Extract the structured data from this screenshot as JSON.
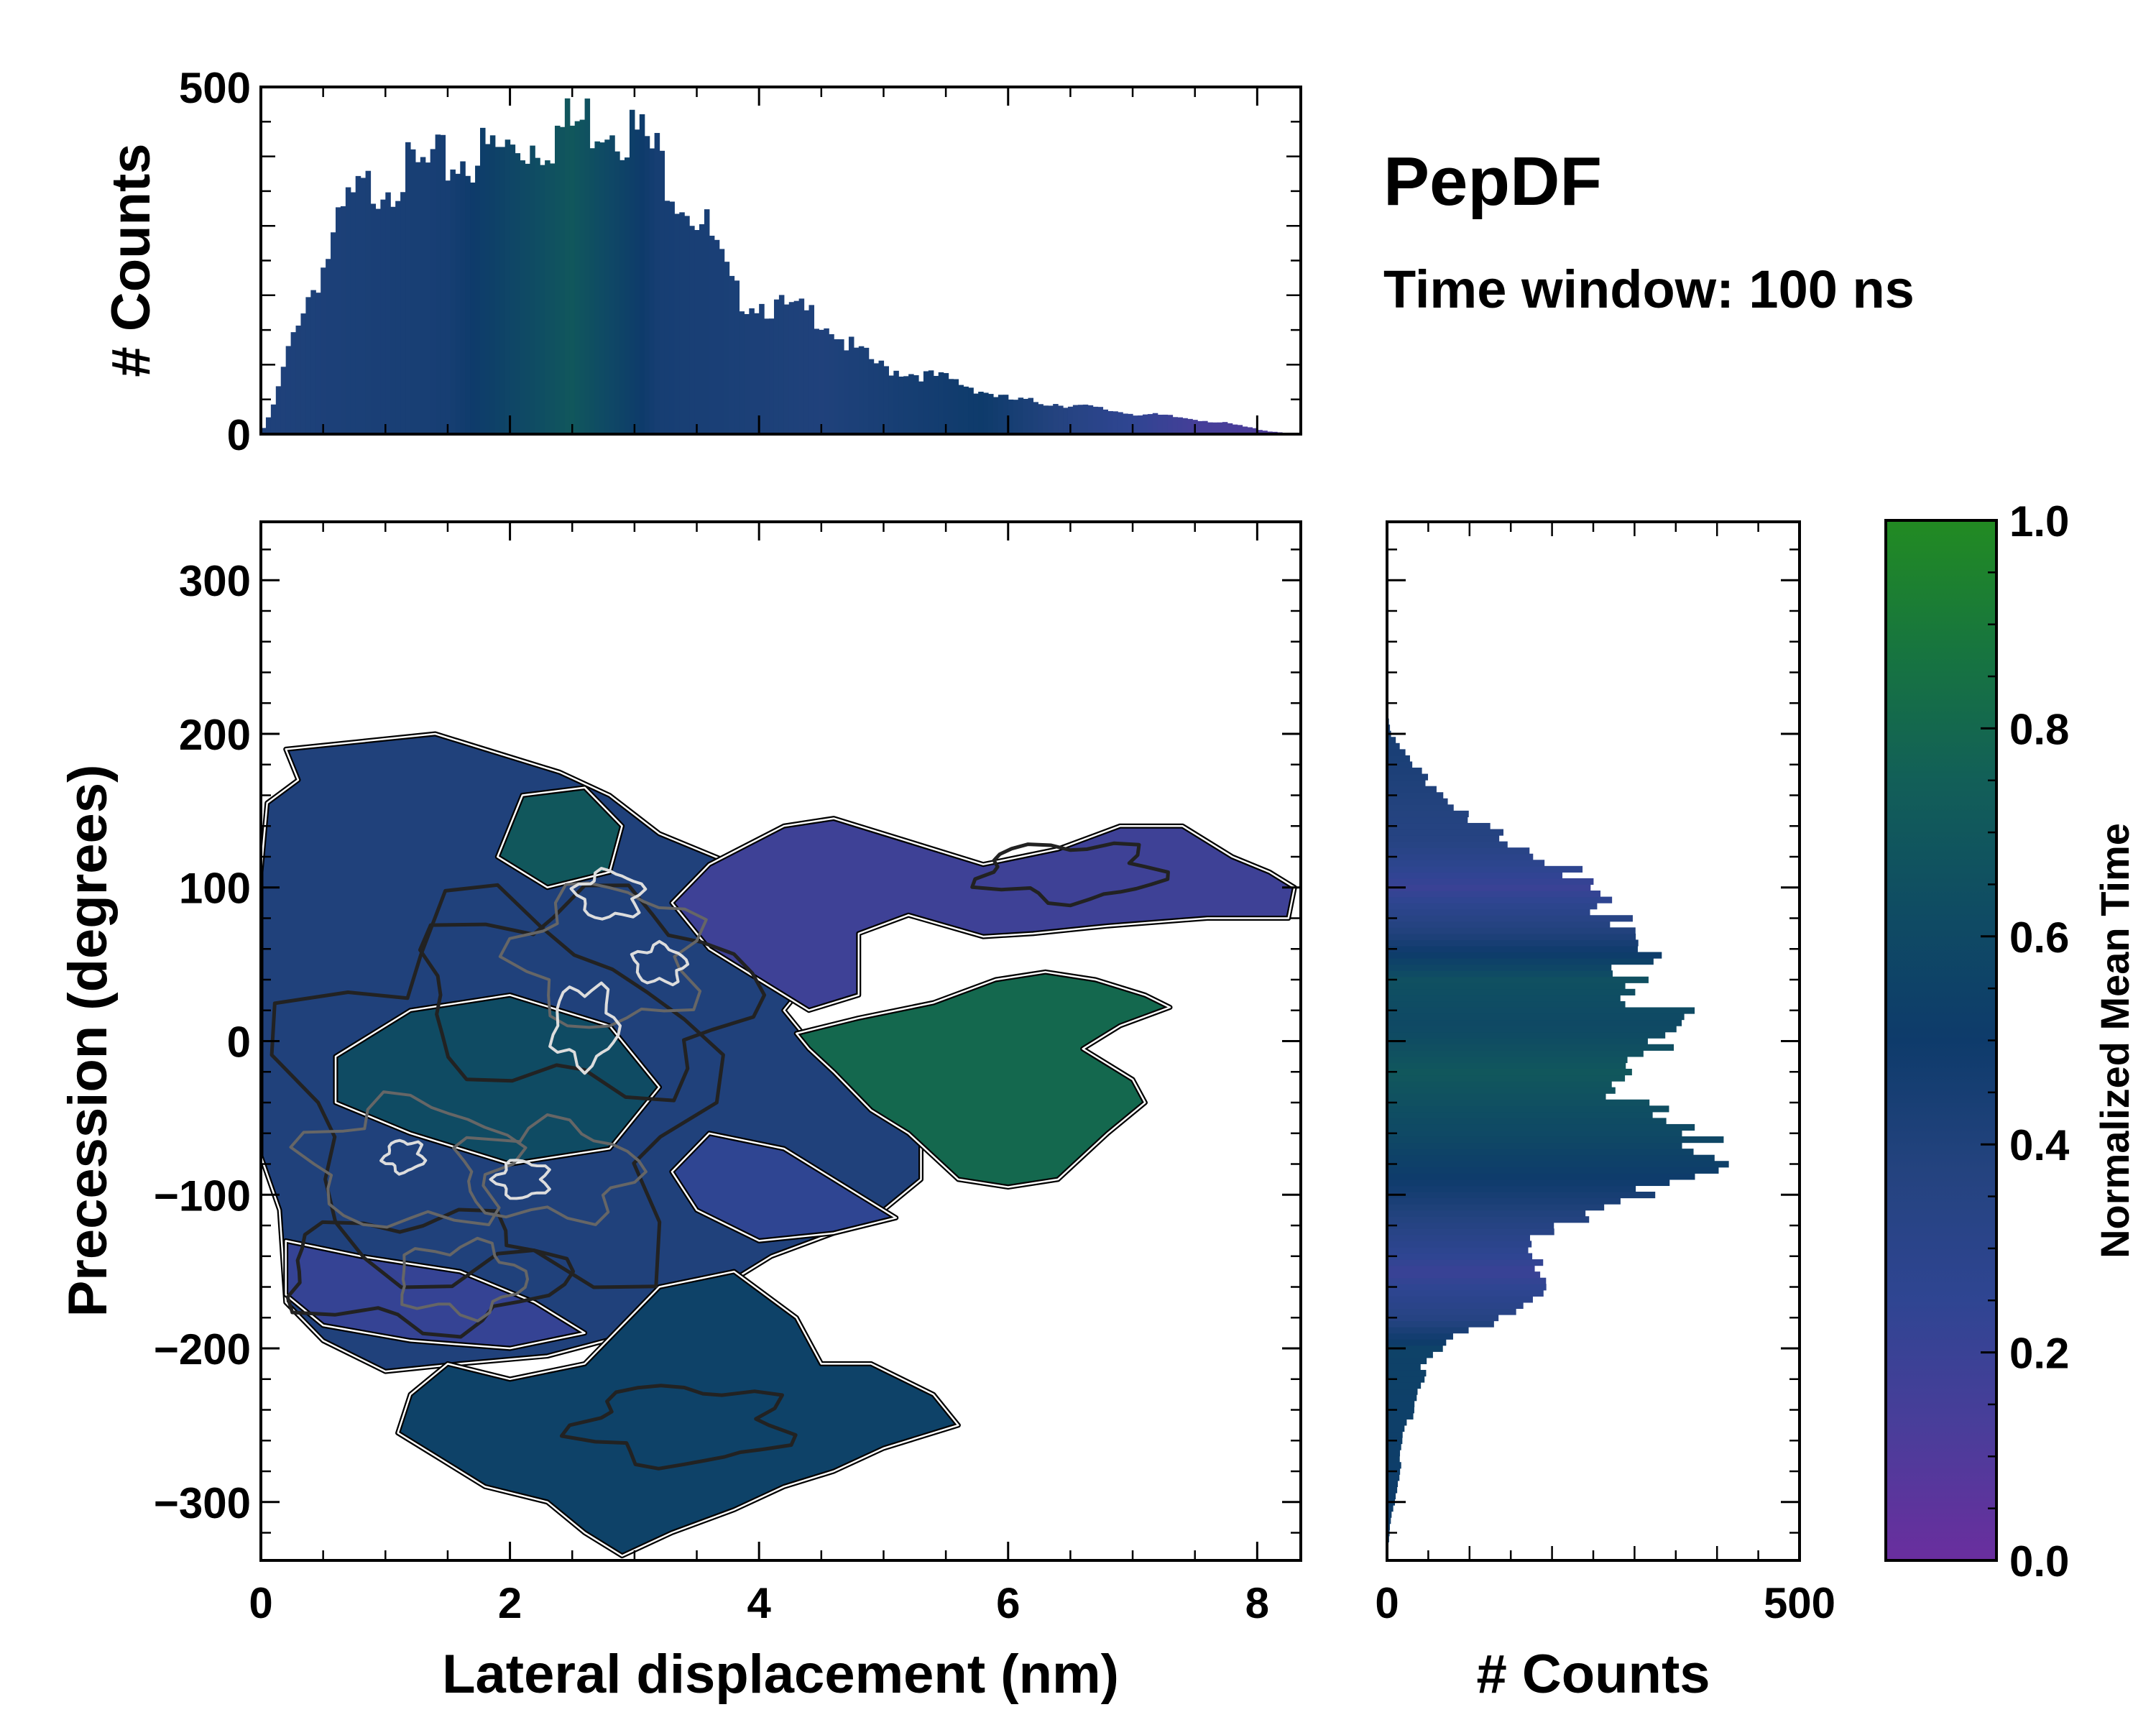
{
  "figure": {
    "title": "PepDF",
    "subtitle": "Time window: 100 ns"
  },
  "colors": {
    "colormap": [
      "#6a2e9e",
      "#4a3d9a",
      "#2f4592",
      "#24437f",
      "#0e3b6b",
      "#0f4c63",
      "#125f58",
      "#17753f",
      "#228b22"
    ],
    "outline": "#000000",
    "contour_dark": "#222222",
    "contour_mid": "#666666",
    "contour_light": "#dddddd"
  },
  "chart_data": [
    {
      "id": "main",
      "type": "heatmap",
      "xlabel": "Lateral displacement (nm)",
      "ylabel": "Precession (degrees)",
      "xlim": [
        0,
        8.35
      ],
      "ylim": [
        -338,
        338
      ],
      "xticks": [
        0,
        2,
        4,
        6,
        8
      ],
      "xtick_labels": [
        "0",
        "2",
        "4",
        "6",
        "8"
      ],
      "yticks": [
        -300,
        -200,
        -100,
        0,
        100,
        200,
        300
      ],
      "ytick_labels": [
        "−300",
        "−200",
        "−100",
        "0",
        "100",
        "200",
        "300"
      ],
      "regions": [
        {
          "name": "core-left",
          "color_value": 0.4,
          "points": [
            [
              0,
              -75
            ],
            [
              0.15,
              -110
            ],
            [
              0.2,
              -170
            ],
            [
              0.5,
              -195
            ],
            [
              1.0,
              -215
            ],
            [
              1.6,
              -210
            ],
            [
              2.3,
              -205
            ],
            [
              3.0,
              -190
            ],
            [
              3.6,
              -165
            ],
            [
              4.1,
              -140
            ],
            [
              4.6,
              -125
            ],
            [
              5.0,
              -110
            ],
            [
              5.3,
              -90
            ],
            [
              5.3,
              -60
            ],
            [
              4.9,
              -35
            ],
            [
              4.5,
              -10
            ],
            [
              4.2,
              20
            ],
            [
              4.5,
              50
            ],
            [
              4.4,
              85
            ],
            [
              3.8,
              115
            ],
            [
              3.2,
              135
            ],
            [
              2.8,
              160
            ],
            [
              2.4,
              175
            ],
            [
              1.8,
              190
            ],
            [
              1.4,
              200
            ],
            [
              0.8,
              195
            ],
            [
              0.2,
              190
            ],
            [
              0.3,
              170
            ],
            [
              0.05,
              155
            ],
            [
              0.0,
              110
            ]
          ]
        },
        {
          "name": "upper-right-arm",
          "color_value": 0.18,
          "points": [
            [
              3.6,
              115
            ],
            [
              4.2,
              140
            ],
            [
              4.6,
              145
            ],
            [
              5.2,
              130
            ],
            [
              5.8,
              115
            ],
            [
              6.4,
              125
            ],
            [
              6.9,
              140
            ],
            [
              7.4,
              140
            ],
            [
              7.8,
              120
            ],
            [
              8.1,
              110
            ],
            [
              8.3,
              100
            ],
            [
              8.25,
              80
            ],
            [
              7.6,
              80
            ],
            [
              6.8,
              75
            ],
            [
              6.2,
              70
            ],
            [
              5.8,
              68
            ],
            [
              5.2,
              82
            ],
            [
              4.8,
              70
            ],
            [
              4.8,
              30
            ],
            [
              4.4,
              20
            ],
            [
              4.0,
              40
            ],
            [
              3.6,
              60
            ],
            [
              3.3,
              90
            ]
          ]
        },
        {
          "name": "right-arm-green",
          "color_value": 0.8,
          "points": [
            [
              4.3,
              5
            ],
            [
              4.8,
              15
            ],
            [
              5.4,
              25
            ],
            [
              5.9,
              40
            ],
            [
              6.3,
              45
            ],
            [
              6.7,
              40
            ],
            [
              7.1,
              30
            ],
            [
              7.3,
              22
            ],
            [
              6.9,
              10
            ],
            [
              6.6,
              -5
            ],
            [
              7.0,
              -25
            ],
            [
              7.1,
              -40
            ],
            [
              6.8,
              -60
            ],
            [
              6.4,
              -90
            ],
            [
              6.0,
              -95
            ],
            [
              5.6,
              -90
            ],
            [
              5.2,
              -60
            ],
            [
              4.9,
              -45
            ],
            [
              4.6,
              -20
            ],
            [
              4.4,
              -5
            ]
          ]
        },
        {
          "name": "lower-lobe",
          "color_value": 0.55,
          "points": [
            [
              1.5,
              -210
            ],
            [
              2.0,
              -220
            ],
            [
              2.6,
              -210
            ],
            [
              3.2,
              -160
            ],
            [
              3.8,
              -150
            ],
            [
              4.3,
              -180
            ],
            [
              4.5,
              -210
            ],
            [
              4.9,
              -210
            ],
            [
              5.4,
              -230
            ],
            [
              5.6,
              -250
            ],
            [
              5.0,
              -265
            ],
            [
              4.6,
              -280
            ],
            [
              4.2,
              -290
            ],
            [
              3.8,
              -305
            ],
            [
              3.3,
              -320
            ],
            [
              2.9,
              -335
            ],
            [
              2.6,
              -320
            ],
            [
              2.3,
              -300
            ],
            [
              1.8,
              -290
            ],
            [
              1.4,
              -270
            ],
            [
              1.1,
              -255
            ],
            [
              1.2,
              -230
            ]
          ]
        },
        {
          "name": "core-upper-green",
          "color_value": 0.7,
          "points": [
            [
              2.1,
              160
            ],
            [
              2.6,
              165
            ],
            [
              2.9,
              140
            ],
            [
              2.8,
              110
            ],
            [
              2.3,
              100
            ],
            [
              1.9,
              120
            ]
          ]
        },
        {
          "name": "core-center-blend",
          "color_value": 0.62,
          "points": [
            [
              0.6,
              -10
            ],
            [
              1.2,
              20
            ],
            [
              2.0,
              30
            ],
            [
              2.8,
              10
            ],
            [
              3.2,
              -30
            ],
            [
              2.8,
              -70
            ],
            [
              2.0,
              -80
            ],
            [
              1.2,
              -60
            ],
            [
              0.6,
              -40
            ]
          ]
        },
        {
          "name": "core-lower-purple",
          "color_value": 0.22,
          "points": [
            [
              0.2,
              -130
            ],
            [
              0.8,
              -140
            ],
            [
              1.6,
              -150
            ],
            [
              2.2,
              -170
            ],
            [
              2.6,
              -190
            ],
            [
              2.0,
              -200
            ],
            [
              1.2,
              -195
            ],
            [
              0.5,
              -185
            ],
            [
              0.2,
              -165
            ]
          ]
        },
        {
          "name": "core-mid-purple",
          "color_value": 0.25,
          "points": [
            [
              3.6,
              -60
            ],
            [
              4.2,
              -70
            ],
            [
              4.8,
              -100
            ],
            [
              5.1,
              -115
            ],
            [
              4.6,
              -125
            ],
            [
              4.0,
              -130
            ],
            [
              3.5,
              -110
            ],
            [
              3.3,
              -85
            ]
          ]
        }
      ],
      "contours": [
        {
          "level": "dark",
          "cx": 1.9,
          "cy": -40,
          "rx": 1.6,
          "ry": 120
        },
        {
          "level": "dark",
          "cx": 2.6,
          "cy": 30,
          "rx": 1.3,
          "ry": 60
        },
        {
          "level": "dark",
          "cx": 1.3,
          "cy": -150,
          "rx": 1.1,
          "ry": 35
        },
        {
          "level": "dark",
          "cx": 6.5,
          "cy": 110,
          "rx": 0.7,
          "ry": 18
        },
        {
          "level": "dark",
          "cx": 3.4,
          "cy": -250,
          "rx": 0.8,
          "ry": 25
        },
        {
          "level": "mid",
          "cx": 2.8,
          "cy": 55,
          "rx": 0.7,
          "ry": 45
        },
        {
          "level": "mid",
          "cx": 1.2,
          "cy": -80,
          "rx": 0.8,
          "ry": 40
        },
        {
          "level": "mid",
          "cx": 2.3,
          "cy": -85,
          "rx": 0.7,
          "ry": 30
        },
        {
          "level": "mid",
          "cx": 1.6,
          "cy": -155,
          "rx": 0.5,
          "ry": 22
        },
        {
          "level": "light",
          "cx": 2.6,
          "cy": 10,
          "rx": 0.25,
          "ry": 25
        },
        {
          "level": "light",
          "cx": 1.15,
          "cy": -75,
          "rx": 0.15,
          "ry": 10
        },
        {
          "level": "light",
          "cx": 2.1,
          "cy": -90,
          "rx": 0.2,
          "ry": 12
        },
        {
          "level": "light",
          "cx": 2.8,
          "cy": 95,
          "rx": 0.25,
          "ry": 15
        },
        {
          "level": "light",
          "cx": 3.2,
          "cy": 50,
          "rx": 0.2,
          "ry": 12
        }
      ]
    },
    {
      "id": "top-histogram",
      "type": "bar",
      "ylabel": "# Counts",
      "xlim": [
        0,
        8.35
      ],
      "ylim": [
        0,
        500
      ],
      "yticks": [
        0,
        500
      ],
      "ytick_labels": [
        "0",
        "500"
      ],
      "bin_width": 0.04,
      "profile": [
        [
          0,
          0
        ],
        [
          0.1,
          40
        ],
        [
          0.3,
          170
        ],
        [
          0.5,
          240
        ],
        [
          0.7,
          330
        ],
        [
          1.0,
          370
        ],
        [
          1.3,
          380
        ],
        [
          1.7,
          400
        ],
        [
          2.0,
          410
        ],
        [
          2.3,
          430
        ],
        [
          2.6,
          450
        ],
        [
          2.8,
          460
        ],
        [
          3.1,
          420
        ],
        [
          3.4,
          340
        ],
        [
          3.6,
          290
        ],
        [
          3.8,
          200
        ],
        [
          4.2,
          180
        ],
        [
          4.5,
          170
        ],
        [
          4.7,
          130
        ],
        [
          5.0,
          95
        ],
        [
          5.5,
          80
        ],
        [
          6.0,
          50
        ],
        [
          6.5,
          42
        ],
        [
          7.0,
          30
        ],
        [
          7.5,
          22
        ],
        [
          7.8,
          14
        ],
        [
          8.1,
          4
        ],
        [
          8.35,
          0
        ]
      ],
      "color_profile": [
        [
          0,
          0.4
        ],
        [
          1.5,
          0.45
        ],
        [
          2.5,
          0.7
        ],
        [
          3.2,
          0.45
        ],
        [
          4.5,
          0.4
        ],
        [
          5.8,
          0.5
        ],
        [
          6.5,
          0.35
        ],
        [
          7.5,
          0.15
        ],
        [
          8.35,
          0.1
        ]
      ]
    },
    {
      "id": "right-histogram",
      "type": "bar",
      "orientation": "horizontal",
      "xlabel": "# Counts",
      "xlim": [
        0,
        500
      ],
      "ylim": [
        -338,
        338
      ],
      "xticks": [
        0,
        500
      ],
      "xtick_labels": [
        "0",
        "500"
      ],
      "bin_width": 4,
      "profile": [
        [
          -338,
          0
        ],
        [
          -310,
          5
        ],
        [
          -290,
          12
        ],
        [
          -260,
          20
        ],
        [
          -230,
          35
        ],
        [
          -210,
          45
        ],
        [
          -195,
          80
        ],
        [
          -180,
          130
        ],
        [
          -170,
          170
        ],
        [
          -155,
          200
        ],
        [
          -140,
          190
        ],
        [
          -120,
          200
        ],
        [
          -100,
          300
        ],
        [
          -85,
          440
        ],
        [
          -75,
          450
        ],
        [
          -60,
          350
        ],
        [
          -40,
          300
        ],
        [
          -20,
          320
        ],
        [
          0,
          310
        ],
        [
          20,
          330
        ],
        [
          40,
          320
        ],
        [
          60,
          290
        ],
        [
          75,
          260
        ],
        [
          90,
          300
        ],
        [
          105,
          250
        ],
        [
          120,
          160
        ],
        [
          140,
          120
        ],
        [
          160,
          70
        ],
        [
          180,
          30
        ],
        [
          200,
          5
        ],
        [
          215,
          0
        ],
        [
          338,
          0
        ]
      ],
      "color_profile": [
        [
          -338,
          0.5
        ],
        [
          -200,
          0.55
        ],
        [
          -180,
          0.35
        ],
        [
          -150,
          0.2
        ],
        [
          -120,
          0.35
        ],
        [
          -90,
          0.5
        ],
        [
          -60,
          0.6
        ],
        [
          -20,
          0.7
        ],
        [
          10,
          0.6
        ],
        [
          40,
          0.65
        ],
        [
          70,
          0.4
        ],
        [
          100,
          0.2
        ],
        [
          130,
          0.35
        ],
        [
          200,
          0.45
        ],
        [
          338,
          0.45
        ]
      ]
    },
    {
      "id": "colorbar",
      "type": "colorbar",
      "label": "Normalized Mean Time",
      "ylim": [
        0,
        1
      ],
      "ticks": [
        0,
        0.2,
        0.4,
        0.6,
        0.8,
        1.0
      ],
      "tick_labels": [
        "0.0",
        "0.2",
        "0.4",
        "0.6",
        "0.8",
        "1.0"
      ]
    }
  ]
}
